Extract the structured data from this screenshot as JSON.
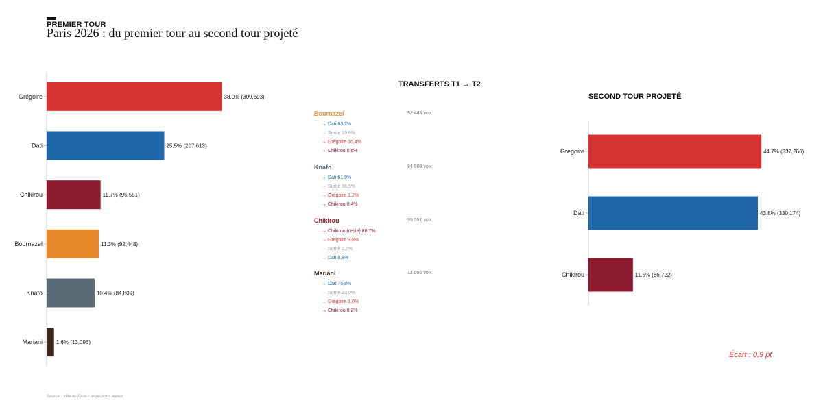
{
  "header": {
    "eyebrow": "PREMIER TOUR",
    "title": "Paris 2026 : du premier tour au second tour projeté"
  },
  "colors": {
    "Grégoire": "#d63232",
    "Dati": "#1f66a8",
    "Chikirou": "#8e1a2e",
    "Bournazel": "#e8892c",
    "Knafo": "#5a6b78",
    "Mariani": "#3d2a22",
    "Sortie": "#999999"
  },
  "chart_data": [
    {
      "type": "bar",
      "orientation": "horizontal",
      "title": "",
      "categories": [
        "Grégoire",
        "Dati",
        "Chikirou",
        "Bournazel",
        "Knafo",
        "Mariani"
      ],
      "values": [
        38.0,
        25.5,
        11.7,
        11.3,
        10.4,
        1.6
      ],
      "votes": [
        "309,693",
        "207,613",
        "95,551",
        "92,448",
        "84,809",
        "13,096"
      ],
      "labels": [
        "38.0%  (309,693)",
        "25.5%  (207,613)",
        "11.7%  (95,551)",
        "11.3%  (92,448)",
        "10.4%  (84,809)",
        "1.6%  (13,096)"
      ],
      "xlim": [
        0,
        40
      ]
    },
    {
      "type": "bar",
      "orientation": "horizontal",
      "title": "SECOND TOUR PROJETÉ",
      "categories": [
        "Grégoire",
        "Dati",
        "Chikirou"
      ],
      "values": [
        44.7,
        43.8,
        11.5
      ],
      "votes": [
        "337,266",
        "330,174",
        "86,722"
      ],
      "labels": [
        "44.7%  (337,266)",
        "43.8%  (330,174)",
        "11.5%  (86,722)"
      ],
      "xlim": [
        0,
        50
      ]
    }
  ],
  "transfers": {
    "title": "TRANSFERTS T1 → T2",
    "blocks": [
      {
        "name": "Bournazel",
        "votes": "92 448 voix",
        "flows": [
          {
            "target": "Dati",
            "label": "→ Dati  63,2%"
          },
          {
            "target": "Sortie",
            "label": "→ Sortie  19,8%"
          },
          {
            "target": "Grégoire",
            "label": "→ Grégoire  16,4%"
          },
          {
            "target": "Chikirou",
            "label": "→ Chikirou  0,6%"
          }
        ]
      },
      {
        "name": "Knafo",
        "votes": "84 809 voix",
        "flows": [
          {
            "target": "Dati",
            "label": "→ Dati  61,9%"
          },
          {
            "target": "Sortie",
            "label": "→ Sortie  36,5%"
          },
          {
            "target": "Grégoire",
            "label": "→ Grégoire  1,2%"
          },
          {
            "target": "Chikirou",
            "label": "→ Chikirou  0,4%"
          }
        ]
      },
      {
        "name": "Chikirou",
        "votes": "95 551 voix",
        "flows": [
          {
            "target": "Chikirou",
            "label": "→ Chikirou (reste)  86,7%"
          },
          {
            "target": "Grégoire",
            "label": "→ Grégoire  9,8%"
          },
          {
            "target": "Sortie",
            "label": "→ Sortie  2,7%"
          },
          {
            "target": "Dati",
            "label": "→ Dati  0,8%"
          }
        ]
      },
      {
        "name": "Mariani",
        "votes": "13 096 voix",
        "flows": [
          {
            "target": "Dati",
            "label": "→ Dati  75,8%"
          },
          {
            "target": "Sortie",
            "label": "→ Sortie  23,0%"
          },
          {
            "target": "Grégoire",
            "label": "→ Grégoire  1,0%"
          },
          {
            "target": "Chikirou",
            "label": "→ Chikirou  0,2%"
          }
        ]
      }
    ]
  },
  "ecart": "Écart : 0,9 pt",
  "source": "Source : Ville de Paris / projections auteur"
}
